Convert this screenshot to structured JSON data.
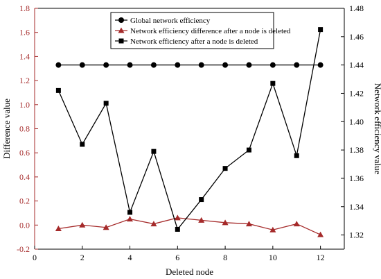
{
  "chart_data": {
    "type": "line",
    "x": [
      1,
      2,
      3,
      4,
      5,
      6,
      7,
      8,
      9,
      10,
      11,
      12
    ],
    "series": [
      {
        "name": "Global network efficiency",
        "axis": "right",
        "marker": "circle",
        "color": "#000000",
        "values": [
          1.44,
          1.44,
          1.44,
          1.44,
          1.44,
          1.44,
          1.44,
          1.44,
          1.44,
          1.44,
          1.44,
          1.44
        ]
      },
      {
        "name": "Network efficiency difference after a node is deleted",
        "axis": "left",
        "marker": "triangle",
        "color": "#a52a2a",
        "values": [
          -0.03,
          0.0,
          -0.02,
          0.05,
          0.01,
          0.06,
          0.04,
          0.02,
          0.01,
          -0.04,
          0.01,
          -0.08
        ]
      },
      {
        "name": "Network efficiency after a node is deleted",
        "axis": "right",
        "marker": "square",
        "color": "#000000",
        "values": [
          1.422,
          1.384,
          1.413,
          1.336,
          1.379,
          1.324,
          1.345,
          1.367,
          1.38,
          1.427,
          1.376,
          1.465
        ]
      }
    ],
    "xlabel": "Deleted node",
    "ylabel_left": "Difference value",
    "ylabel_right": "Network efficiency value",
    "xlim": [
      0,
      13
    ],
    "ylim_left": [
      -0.2,
      1.8
    ],
    "ylim_right": [
      1.31,
      1.48
    ],
    "xticks": [
      0,
      2,
      4,
      6,
      8,
      10,
      12
    ],
    "yticks_left": [
      "-0.2",
      "0.0",
      "0.2",
      "0.4",
      "0.6",
      "0.8",
      "1.0",
      "1.2",
      "1.4",
      "1.6",
      "1.8"
    ],
    "yticks_right": [
      "1.32",
      "1.34",
      "1.36",
      "1.38",
      "1.40",
      "1.42",
      "1.44",
      "1.46",
      "1.48"
    ],
    "left_axis_color": "#a52a2a",
    "grid": false,
    "legend_position": "top-center"
  }
}
